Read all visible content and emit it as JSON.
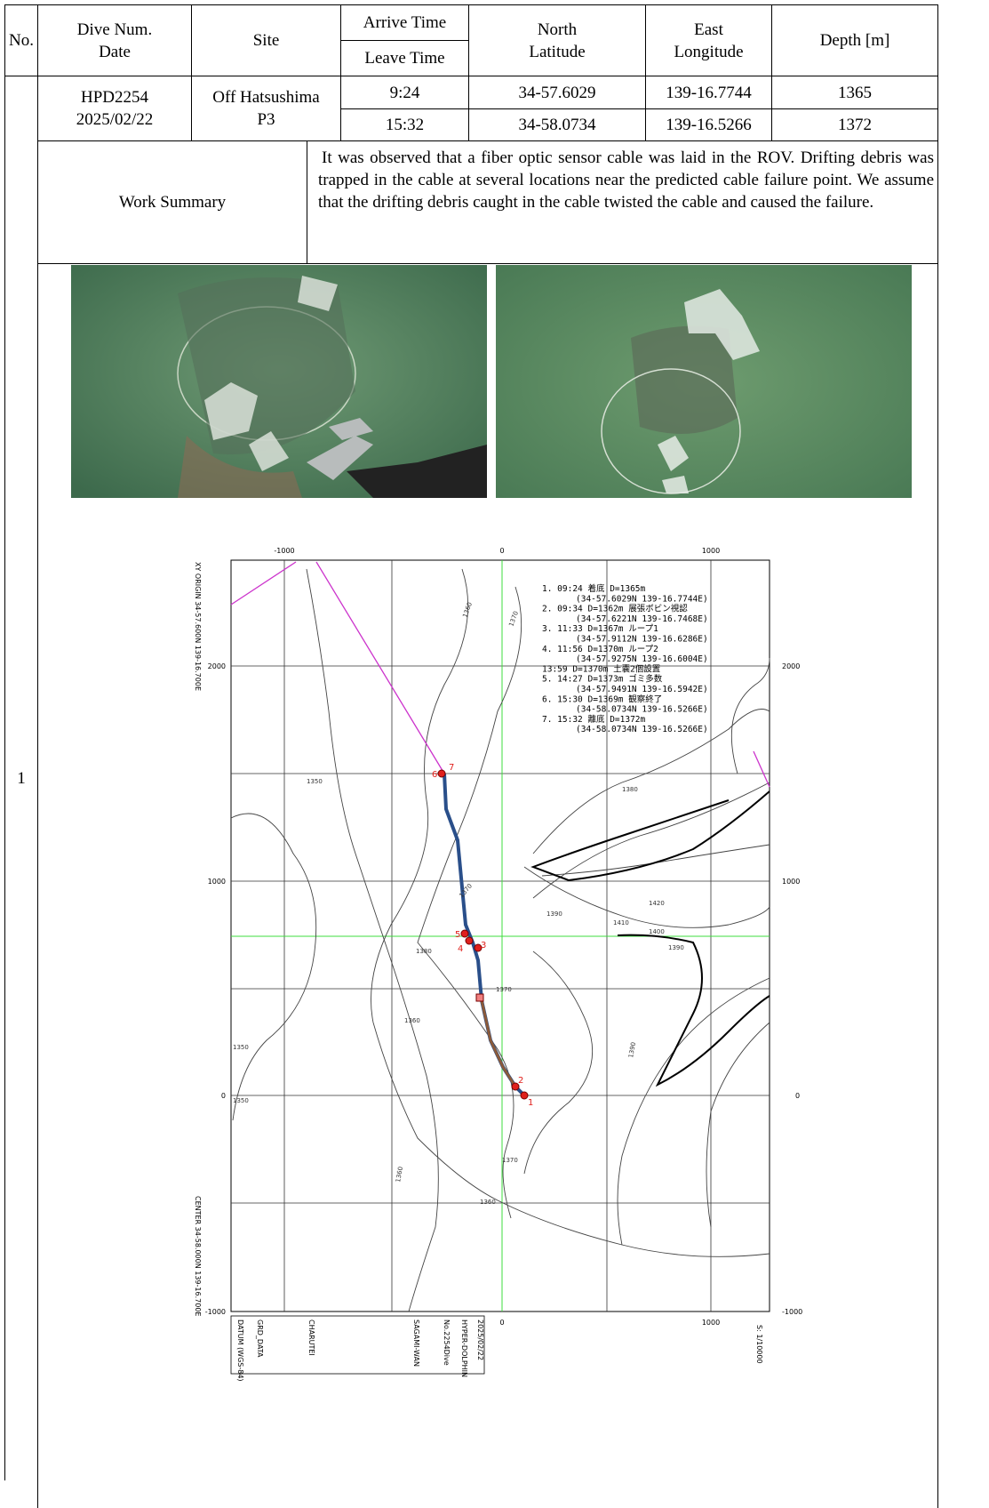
{
  "header": {
    "no": "No.",
    "dive_num": "Dive Num.",
    "date": "Date",
    "site": "Site",
    "arrive_time": "Arrive Time",
    "leave_time": "Leave Time",
    "north_latitude": "North Latitude",
    "east_longitude": "East Longitude",
    "depth": "Depth [m]"
  },
  "row": {
    "no": "1",
    "dive_num": "HPD2254",
    "date": "2025/02/22",
    "site": "Off Hatsushima P3",
    "arrive_time": "9:24",
    "leave_time": "15:32",
    "arrive_latitude": "34-57.6029",
    "leave_latitude": "34-58.0734",
    "arrive_longitude": "139-16.7744",
    "leave_longitude": "139-16.5266",
    "arrive_depth": "1365",
    "leave_depth": "1372",
    "work_summary_label": "Work Summary",
    "work_summary": "It was observed that a fiber optic sensor cable was laid in the ROV. Drifting debris was trapped in the cable at several locations near the predicted cable failure point. We assume that the drifting debris caught in the cable twisted the cable and caused the failure."
  },
  "map": {
    "x_ticks": [
      "-1000",
      "0",
      "1000"
    ],
    "y_ticks": [
      "2000",
      "1000",
      "0",
      "-1000"
    ],
    "origin": "XY ORIGIN 34-57.600N 139-16.700E",
    "center": "CENTER 34-58.000N 139-16.700E",
    "scale": "S: 1/10000",
    "legend": [
      "1. 09:24 着底 D=1365m",
      "(34-57.6029N 139-16.7744E)",
      "2. 09:34 D=1362m 展張ボビン視認",
      "(34-57.6221N 139-16.7468E)",
      "3. 11:33 D=1367m ループ1",
      "(34-57.9112N 139-16.6286E)",
      "4. 11:56 D=1370m ループ2",
      "(34-57.9275N 139-16.6004E)",
      "13:59 D=1370m 土嚢2個設置",
      "5. 14:27 D=1373m ゴミ多数",
      "(34-57.9491N 139-16.5942E)",
      "6. 15:30 D=1369m 観察終了",
      "(34-58.0734N 139-16.5266E)",
      "7. 15:32 離底 D=1372m",
      "(34-58.0734N 139-16.5266E)"
    ],
    "point_labels": [
      "1",
      "2",
      "3",
      "4",
      "5",
      "6",
      "7"
    ],
    "contour_labels": [
      "1350",
      "1360",
      "1370",
      "1370",
      "1380",
      "1390",
      "1410",
      "1420",
      "1400",
      "1380",
      "1370",
      "1360",
      "1350",
      "1390",
      "1390",
      "1360",
      "1370",
      "1360",
      "1350"
    ],
    "footer": [
      "DATUM (WGS-84)",
      "GRD_DATA",
      "CHARUTEI",
      "SAGAMI-WAN",
      "No.2254Dive",
      "HYPER-DOLPHIN",
      "2025/02/22"
    ]
  }
}
